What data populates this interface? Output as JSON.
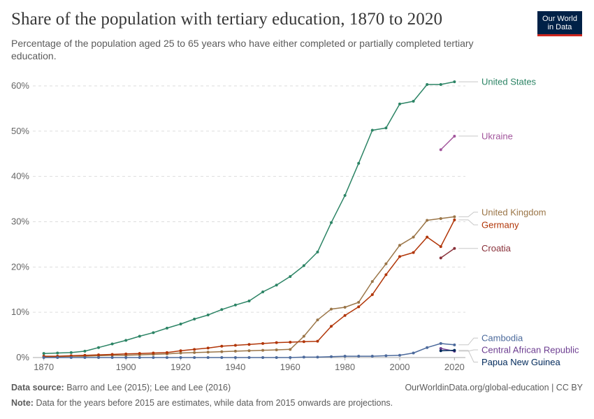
{
  "header": {
    "title": "Share of the population with tertiary education, 1870 to 2020",
    "subtitle": "Percentage of the population aged 25 to 65 years who have either completed or partially completed tertiary education.",
    "logo_line1": "Our World",
    "logo_line2": "in Data"
  },
  "footer": {
    "source_label": "Data source:",
    "source_text": "Barro and Lee (2015); Lee and Lee (2016)",
    "link_text": "OurWorldinData.org/global-education",
    "license": "CC BY",
    "note_label": "Note:",
    "note_text": "Data for the years before 2015 are estimates, while data from 2015 onwards are projections."
  },
  "chart_data": {
    "type": "line",
    "xlabel": "",
    "ylabel": "",
    "xlim": [
      1866,
      2024
    ],
    "ylim": [
      0,
      62
    ],
    "x_ticks": [
      "1870",
      "1900",
      "1920",
      "1940",
      "1960",
      "1980",
      "2000",
      "2020"
    ],
    "y_ticks": [
      "0%",
      "10%",
      "20%",
      "30%",
      "40%",
      "50%",
      "60%"
    ],
    "grid": "horizontal-dashed",
    "legend": "inline-right",
    "series": [
      {
        "name": "United States",
        "color": "#2c8465",
        "x": [
          1870,
          1875,
          1880,
          1885,
          1890,
          1895,
          1900,
          1905,
          1910,
          1915,
          1920,
          1925,
          1930,
          1935,
          1940,
          1945,
          1950,
          1955,
          1960,
          1965,
          1970,
          1975,
          1980,
          1985,
          1990,
          1995,
          2000,
          2005,
          2010,
          2015,
          2020
        ],
        "values": [
          0.9,
          1.0,
          1.1,
          1.4,
          2.2,
          3.0,
          3.8,
          4.7,
          5.5,
          6.5,
          7.4,
          8.5,
          9.4,
          10.6,
          11.6,
          12.5,
          14.5,
          16.0,
          17.9,
          20.3,
          23.3,
          29.8,
          35.8,
          42.9,
          50.2,
          50.7,
          56.0,
          56.6,
          60.3,
          60.3,
          60.9
        ]
      },
      {
        "name": "Ukraine",
        "color": "#a2559c",
        "x": [
          2015,
          2020
        ],
        "values": [
          45.9,
          48.9
        ]
      },
      {
        "name": "United Kingdom",
        "color": "#9a7547",
        "x": [
          1870,
          1875,
          1880,
          1885,
          1890,
          1895,
          1900,
          1905,
          1910,
          1915,
          1920,
          1925,
          1930,
          1935,
          1940,
          1945,
          1950,
          1955,
          1960,
          1965,
          1970,
          1975,
          1980,
          1985,
          1990,
          1995,
          2000,
          2005,
          2010,
          2015,
          2020
        ],
        "values": [
          0.2,
          0.2,
          0.3,
          0.3,
          0.4,
          0.5,
          0.5,
          0.6,
          0.7,
          0.8,
          1.0,
          1.1,
          1.2,
          1.3,
          1.4,
          1.5,
          1.6,
          1.7,
          1.8,
          4.7,
          8.3,
          10.7,
          11.1,
          12.2,
          16.8,
          20.7,
          24.8,
          26.6,
          30.3,
          30.7,
          31.1
        ]
      },
      {
        "name": "Germany",
        "color": "#b13507",
        "x": [
          1870,
          1875,
          1880,
          1885,
          1890,
          1895,
          1900,
          1905,
          1910,
          1915,
          1920,
          1925,
          1930,
          1935,
          1940,
          1945,
          1950,
          1955,
          1960,
          1965,
          1970,
          1975,
          1980,
          1985,
          1990,
          1995,
          2000,
          2005,
          2010,
          2015,
          2020
        ],
        "values": [
          0.3,
          0.3,
          0.4,
          0.5,
          0.6,
          0.7,
          0.8,
          0.9,
          1.0,
          1.1,
          1.5,
          1.8,
          2.1,
          2.5,
          2.7,
          2.9,
          3.1,
          3.3,
          3.4,
          3.5,
          3.6,
          6.9,
          9.3,
          11.2,
          13.9,
          18.3,
          22.3,
          23.2,
          26.6,
          24.5,
          30.4
        ]
      },
      {
        "name": "Croatia",
        "color": "#883039",
        "x": [
          2015,
          2020
        ],
        "values": [
          22.0,
          24.1
        ]
      },
      {
        "name": "Cambodia",
        "color": "#4c6a9c",
        "x": [
          1870,
          1875,
          1880,
          1885,
          1890,
          1895,
          1900,
          1905,
          1910,
          1915,
          1920,
          1925,
          1930,
          1935,
          1940,
          1945,
          1950,
          1955,
          1960,
          1965,
          1970,
          1975,
          1980,
          1985,
          1990,
          1995,
          2000,
          2005,
          2010,
          2015,
          2020
        ],
        "values": [
          0,
          0,
          0,
          0,
          0,
          0,
          0,
          0,
          0,
          0,
          0,
          0,
          0,
          0,
          0,
          0,
          0,
          0,
          0,
          0.1,
          0.1,
          0.2,
          0.3,
          0.3,
          0.3,
          0.4,
          0.5,
          1.0,
          2.2,
          3.1,
          2.8
        ]
      },
      {
        "name": "Central African Republic",
        "color": "#6d3e91",
        "x": [
          2015,
          2020
        ],
        "values": [
          2.0,
          1.4
        ]
      },
      {
        "name": "Papua New Guinea",
        "color": "#00295b",
        "x": [
          2015,
          2020
        ],
        "values": [
          1.5,
          1.6
        ]
      }
    ],
    "labels": [
      {
        "name": "United States",
        "color": "#2c8465",
        "value": 60.9
      },
      {
        "name": "Ukraine",
        "color": "#a2559c",
        "value": 48.9
      },
      {
        "name": "United Kingdom",
        "color": "#9a7547",
        "value": 31.1,
        "display": 32.1
      },
      {
        "name": "Germany",
        "color": "#b13507",
        "value": 30.4,
        "display": 29.3
      },
      {
        "name": "Croatia",
        "color": "#883039",
        "value": 24.1
      },
      {
        "name": "Cambodia",
        "color": "#4c6a9c",
        "value": 2.8,
        "display": 4.3
      },
      {
        "name": "Central African Republic",
        "color": "#6d3e91",
        "value": 1.4,
        "display": 1.7
      },
      {
        "name": "Papua New Guinea",
        "color": "#00295b",
        "value": 1.6,
        "display": -1.0
      }
    ]
  }
}
